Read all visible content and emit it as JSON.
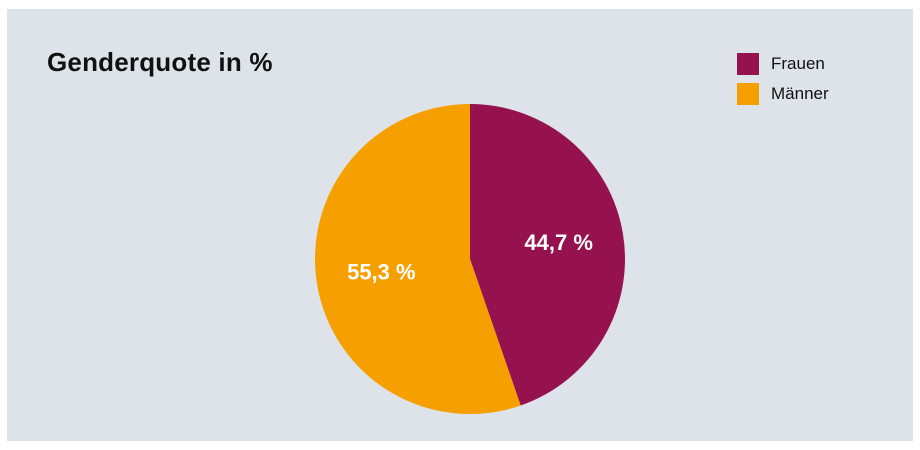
{
  "chart_data": {
    "type": "pie",
    "title": "Genderquote in %",
    "slices": [
      {
        "name": "Frauen",
        "value": 44.7,
        "label": "44,7 %",
        "color": "#96124f"
      },
      {
        "name": "Männer",
        "value": 55.3,
        "label": "55,3 %",
        "color": "#f59f00"
      }
    ],
    "legend": "top-right",
    "background_color": "#dde3e8"
  }
}
